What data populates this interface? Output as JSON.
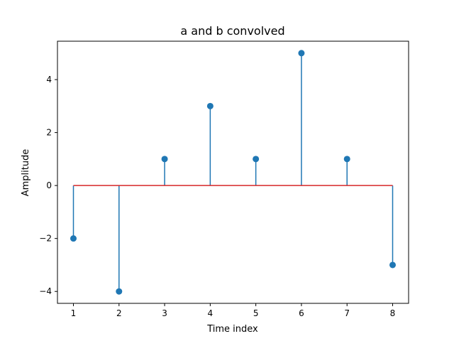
{
  "chart_data": {
    "type": "stem",
    "title": "a and b convolved",
    "xlabel": "Time index",
    "ylabel": "Amplitude",
    "x": [
      1,
      2,
      3,
      4,
      5,
      6,
      7,
      8
    ],
    "values": [
      -2,
      -4,
      1,
      3,
      1,
      5,
      1,
      -3
    ],
    "xlim": [
      0.65,
      8.35
    ],
    "ylim": [
      -4.45,
      5.45
    ],
    "xticks": [
      1,
      2,
      3,
      4,
      5,
      6,
      7,
      8
    ],
    "yticks": [
      -4,
      -2,
      0,
      2,
      4
    ],
    "ytick_labels": [
      "−4",
      "−2",
      "0",
      "2",
      "4"
    ],
    "baseline": 0,
    "grid": false,
    "colors": {
      "stem": "#1f77b4",
      "marker": "#1f77b4",
      "baseline": "#d62728"
    }
  }
}
